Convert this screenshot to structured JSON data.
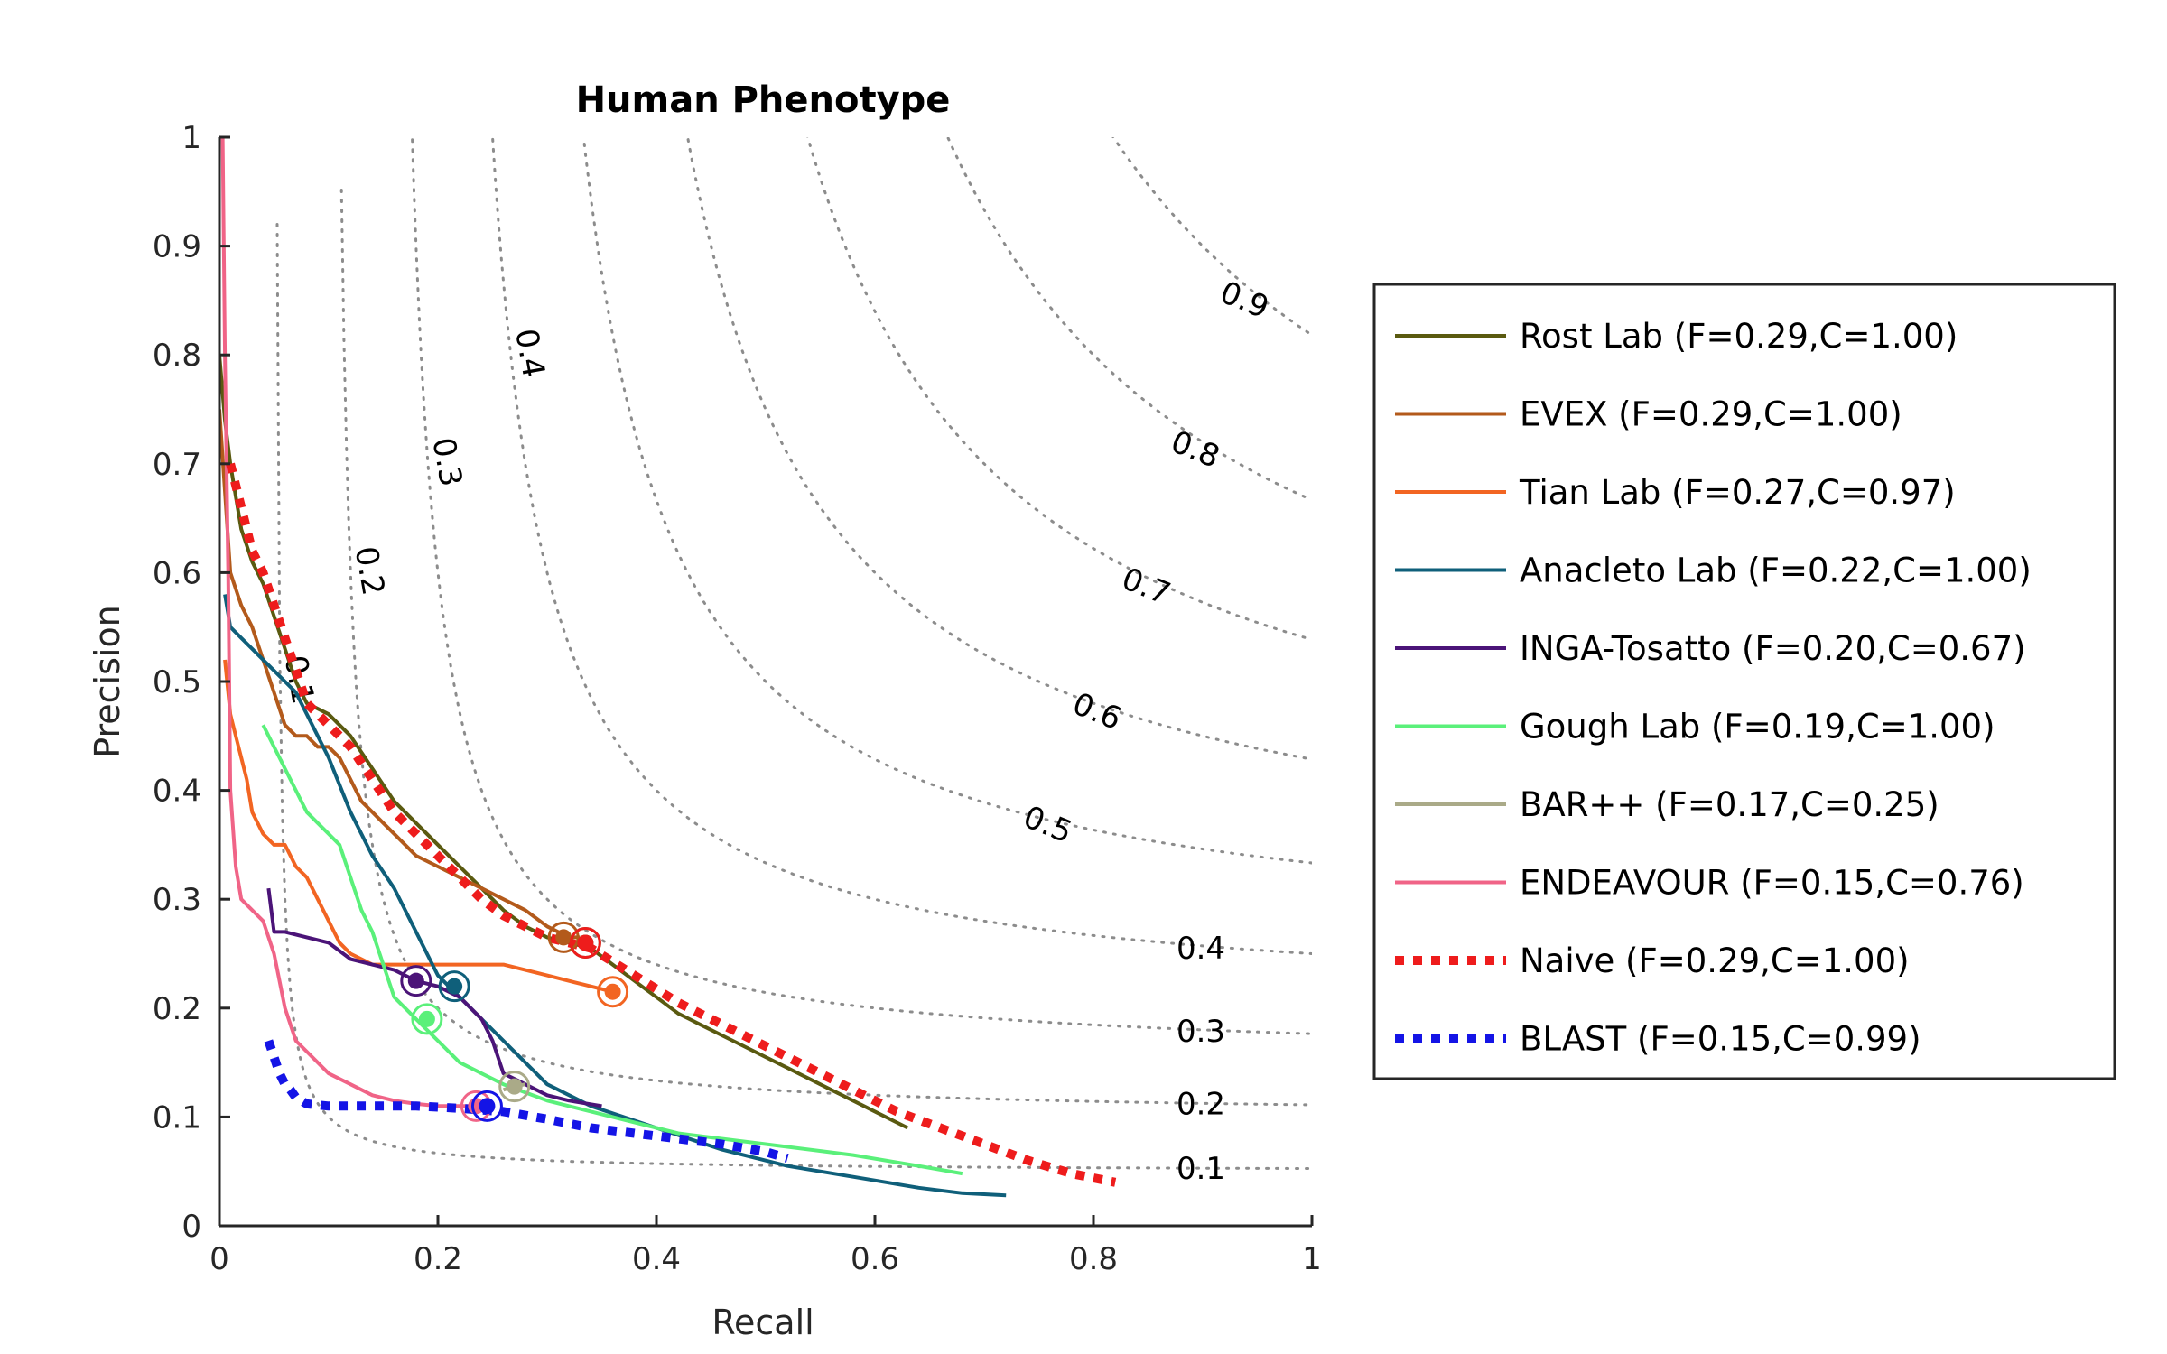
{
  "chart_data": {
    "type": "line",
    "title": "Human Phenotype",
    "xlabel": "Recall",
    "ylabel": "Precision",
    "xlim": [
      0,
      1
    ],
    "ylim": [
      0,
      1
    ],
    "xticks": [
      0,
      0.2,
      0.4,
      0.6,
      0.8,
      1
    ],
    "yticks": [
      0,
      0.1,
      0.2,
      0.3,
      0.4,
      0.5,
      0.6,
      0.7,
      0.8,
      0.9,
      1
    ],
    "xtick_labels": [
      "0",
      "0.2",
      "0.4",
      "0.6",
      "0.8",
      "1"
    ],
    "ytick_labels": [
      "0",
      "0.1",
      "0.2",
      "0.3",
      "0.4",
      "0.5",
      "0.6",
      "0.7",
      "0.8",
      "0.9",
      "1"
    ],
    "grid": false,
    "legend_position": "right",
    "iso_f_curves": [
      {
        "f": 0.1,
        "label": "0.1",
        "label_pos": "right"
      },
      {
        "f": 0.2,
        "label": "0.2",
        "label_pos": "right"
      },
      {
        "f": 0.3,
        "label": "0.3",
        "label_pos": "right"
      },
      {
        "f": 0.4,
        "label": "0.4",
        "label_pos": "right"
      },
      {
        "f": 0.5,
        "label": "0.5",
        "label_pos": "curve"
      },
      {
        "f": 0.6,
        "label": "0.6",
        "label_pos": "curve"
      },
      {
        "f": 0.7,
        "label": "0.7",
        "label_pos": "curve"
      },
      {
        "f": 0.8,
        "label": "0.8",
        "label_pos": "curve"
      },
      {
        "f": 0.9,
        "label": "0.9",
        "label_pos": "curve"
      }
    ],
    "iso_f_left_labels": [
      {
        "f": 0.1,
        "label": "0.1"
      },
      {
        "f": 0.2,
        "label": "0.2"
      },
      {
        "f": 0.3,
        "label": "0.3"
      },
      {
        "f": 0.4,
        "label": "0.4"
      }
    ],
    "series": [
      {
        "name": "Rost Lab (F=0.29,C=1.00)",
        "color": "#5a5a10",
        "style": "solid",
        "x": [
          0,
          0.005,
          0.01,
          0.015,
          0.02,
          0.03,
          0.04,
          0.05,
          0.06,
          0.07,
          0.08,
          0.1,
          0.12,
          0.14,
          0.16,
          0.18,
          0.2,
          0.22,
          0.24,
          0.26,
          0.28,
          0.3,
          0.32,
          0.34,
          0.36,
          0.38,
          0.4,
          0.42,
          0.44,
          0.46,
          0.48,
          0.5,
          0.52,
          0.54,
          0.56,
          0.58,
          0.6,
          0.63
        ],
        "y": [
          0.8,
          0.74,
          0.7,
          0.67,
          0.64,
          0.61,
          0.59,
          0.56,
          0.53,
          0.5,
          0.48,
          0.47,
          0.45,
          0.42,
          0.39,
          0.37,
          0.35,
          0.33,
          0.31,
          0.29,
          0.275,
          0.265,
          0.26,
          0.255,
          0.24,
          0.225,
          0.21,
          0.195,
          0.185,
          0.175,
          0.165,
          0.155,
          0.145,
          0.135,
          0.125,
          0.115,
          0.105,
          0.09
        ],
        "optimal": {
          "x": 0.335,
          "y": 0.26
        }
      },
      {
        "name": "EVEX (F=0.29,C=1.00)",
        "color": "#b35a1b",
        "style": "solid",
        "x": [
          0,
          0.01,
          0.02,
          0.03,
          0.04,
          0.05,
          0.06,
          0.07,
          0.08,
          0.09,
          0.1,
          0.11,
          0.12,
          0.13,
          0.14,
          0.15,
          0.16,
          0.18,
          0.2,
          0.22,
          0.24,
          0.26,
          0.28,
          0.3,
          0.32,
          0.33
        ],
        "y": [
          0.75,
          0.6,
          0.57,
          0.55,
          0.52,
          0.49,
          0.46,
          0.45,
          0.45,
          0.44,
          0.44,
          0.43,
          0.41,
          0.39,
          0.38,
          0.37,
          0.36,
          0.34,
          0.33,
          0.32,
          0.31,
          0.3,
          0.29,
          0.275,
          0.265,
          0.265
        ],
        "optimal": {
          "x": 0.315,
          "y": 0.265
        }
      },
      {
        "name": "Tian Lab (F=0.27,C=0.97)",
        "color": "#f26522",
        "style": "solid",
        "x": [
          0.005,
          0.01,
          0.015,
          0.02,
          0.025,
          0.03,
          0.04,
          0.05,
          0.06,
          0.07,
          0.08,
          0.09,
          0.1,
          0.11,
          0.12,
          0.14,
          0.16,
          0.18,
          0.2,
          0.22,
          0.24,
          0.26,
          0.28,
          0.3,
          0.32,
          0.34,
          0.36
        ],
        "y": [
          0.52,
          0.47,
          0.45,
          0.43,
          0.41,
          0.38,
          0.36,
          0.35,
          0.35,
          0.33,
          0.32,
          0.3,
          0.28,
          0.26,
          0.25,
          0.24,
          0.24,
          0.24,
          0.24,
          0.24,
          0.24,
          0.24,
          0.235,
          0.23,
          0.225,
          0.22,
          0.215
        ],
        "optimal": {
          "x": 0.36,
          "y": 0.215
        }
      },
      {
        "name": "Anacleto Lab (F=0.22,C=1.00)",
        "color": "#0f5f7a",
        "style": "solid",
        "x": [
          0.005,
          0.01,
          0.02,
          0.03,
          0.04,
          0.05,
          0.06,
          0.07,
          0.08,
          0.09,
          0.1,
          0.12,
          0.14,
          0.16,
          0.18,
          0.2,
          0.21,
          0.22,
          0.24,
          0.26,
          0.28,
          0.3,
          0.34,
          0.4,
          0.46,
          0.52,
          0.58,
          0.64,
          0.68,
          0.72
        ],
        "y": [
          0.58,
          0.55,
          0.54,
          0.53,
          0.52,
          0.51,
          0.5,
          0.49,
          0.47,
          0.45,
          0.43,
          0.38,
          0.34,
          0.31,
          0.27,
          0.23,
          0.22,
          0.21,
          0.19,
          0.17,
          0.15,
          0.13,
          0.11,
          0.09,
          0.07,
          0.055,
          0.045,
          0.035,
          0.03,
          0.028
        ],
        "optimal": {
          "x": 0.215,
          "y": 0.22
        }
      },
      {
        "name": "INGA-Tosatto (F=0.20,C=0.67)",
        "color": "#4b1478",
        "style": "solid",
        "x": [
          0.045,
          0.05,
          0.06,
          0.08,
          0.1,
          0.12,
          0.14,
          0.16,
          0.18,
          0.2,
          0.22,
          0.24,
          0.25,
          0.26,
          0.28,
          0.3,
          0.32,
          0.35
        ],
        "y": [
          0.31,
          0.27,
          0.27,
          0.265,
          0.26,
          0.245,
          0.24,
          0.235,
          0.225,
          0.22,
          0.21,
          0.19,
          0.17,
          0.14,
          0.13,
          0.12,
          0.115,
          0.11
        ],
        "optimal": {
          "x": 0.18,
          "y": 0.225
        }
      },
      {
        "name": "Gough Lab (F=0.19,C=1.00)",
        "color": "#5af07a",
        "style": "solid",
        "x": [
          0.04,
          0.05,
          0.06,
          0.07,
          0.08,
          0.09,
          0.1,
          0.11,
          0.12,
          0.13,
          0.14,
          0.15,
          0.16,
          0.18,
          0.2,
          0.22,
          0.24,
          0.26,
          0.3,
          0.36,
          0.42,
          0.5,
          0.58,
          0.64,
          0.68
        ],
        "y": [
          0.46,
          0.44,
          0.42,
          0.4,
          0.38,
          0.37,
          0.36,
          0.35,
          0.32,
          0.29,
          0.27,
          0.24,
          0.21,
          0.19,
          0.17,
          0.15,
          0.14,
          0.13,
          0.115,
          0.1,
          0.085,
          0.075,
          0.065,
          0.055,
          0.048
        ],
        "optimal": {
          "x": 0.19,
          "y": 0.19
        }
      },
      {
        "name": "BAR++ (F=0.17,C=0.25)",
        "color": "#aaaa88",
        "style": "solid",
        "x": [
          0.26,
          0.27,
          0.28
        ],
        "y": [
          0.125,
          0.128,
          0.13
        ],
        "optimal": {
          "x": 0.27,
          "y": 0.128
        }
      },
      {
        "name": "ENDEAVOUR (F=0.15,C=0.76)",
        "color": "#f06487",
        "style": "solid",
        "x": [
          0.003,
          0.005,
          0.008,
          0.01,
          0.015,
          0.02,
          0.03,
          0.04,
          0.05,
          0.06,
          0.07,
          0.08,
          0.1,
          0.12,
          0.14,
          0.16,
          0.18,
          0.2,
          0.22,
          0.24
        ],
        "y": [
          1.0,
          0.8,
          0.6,
          0.4,
          0.33,
          0.3,
          0.29,
          0.28,
          0.25,
          0.2,
          0.17,
          0.16,
          0.14,
          0.13,
          0.12,
          0.115,
          0.112,
          0.11,
          0.11,
          0.11
        ],
        "optimal": {
          "x": 0.235,
          "y": 0.11
        }
      },
      {
        "name": "Naive (F=0.29,C=1.00)",
        "color": "#ee1c1c",
        "style": "dotted",
        "x": [
          0.01,
          0.02,
          0.03,
          0.04,
          0.05,
          0.06,
          0.07,
          0.08,
          0.1,
          0.12,
          0.14,
          0.16,
          0.18,
          0.2,
          0.22,
          0.24,
          0.26,
          0.28,
          0.3,
          0.32,
          0.34,
          0.38,
          0.42,
          0.46,
          0.5,
          0.54,
          0.58,
          0.62,
          0.66,
          0.7,
          0.74,
          0.78,
          0.82
        ],
        "y": [
          0.7,
          0.66,
          0.62,
          0.6,
          0.57,
          0.54,
          0.51,
          0.48,
          0.46,
          0.44,
          0.41,
          0.38,
          0.36,
          0.34,
          0.32,
          0.3,
          0.285,
          0.275,
          0.265,
          0.26,
          0.255,
          0.23,
          0.205,
          0.185,
          0.165,
          0.145,
          0.125,
          0.105,
          0.09,
          0.075,
          0.06,
          0.048,
          0.04
        ],
        "optimal": {
          "x": 0.335,
          "y": 0.26
        }
      },
      {
        "name": "BLAST (F=0.15,C=0.99)",
        "color": "#1414e6",
        "style": "dotted",
        "x": [
          0.045,
          0.05,
          0.055,
          0.06,
          0.065,
          0.07,
          0.08,
          0.1,
          0.14,
          0.18,
          0.22,
          0.26,
          0.3,
          0.34,
          0.38,
          0.42,
          0.46,
          0.5,
          0.52
        ],
        "y": [
          0.17,
          0.155,
          0.14,
          0.13,
          0.125,
          0.118,
          0.112,
          0.11,
          0.11,
          0.11,
          0.108,
          0.105,
          0.098,
          0.09,
          0.085,
          0.08,
          0.075,
          0.068,
          0.062
        ],
        "optimal": {
          "x": 0.245,
          "y": 0.11
        }
      }
    ]
  }
}
